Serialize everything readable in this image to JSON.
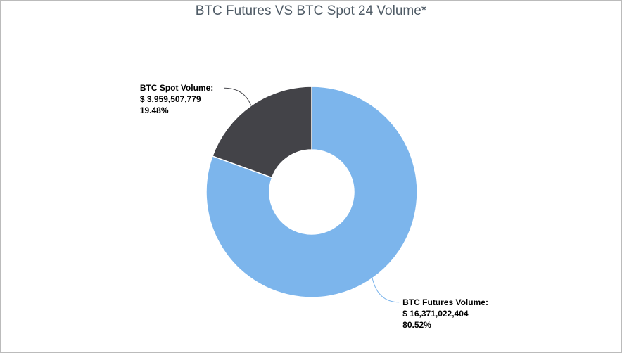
{
  "chart_data": {
    "type": "pie",
    "title": "BTC Futures VS BTC Spot 24 Volume*",
    "categories": [
      "BTC Futures Volume:",
      "BTC Spot Volume:"
    ],
    "values": [
      16371022404,
      3959507779
    ],
    "value_labels": [
      "$ 16,371,022,404",
      "$ 3,959,507,779"
    ],
    "shares": [
      80.52,
      19.48
    ],
    "share_labels": [
      "80.52%",
      "19.48%"
    ],
    "colors": [
      "#7cb5ec",
      "#434348"
    ],
    "donut": true
  }
}
